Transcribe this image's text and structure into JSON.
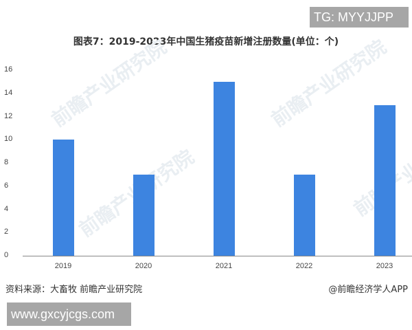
{
  "watermark_tg": "TG: MYYJJPP",
  "title": "图表7：2019-2023年中国生猪疫苗新增注册数量(单位：个)",
  "footer": {
    "source": "资料来源：大畜牧 前瞻产业研究院",
    "credit": "@前瞻经济学人APP",
    "url": "www.gxcyjcgs.com"
  },
  "watermark_text": "前瞻产业研究院",
  "colors": {
    "bar": "#3d84e0",
    "axis": "#888888"
  },
  "yticks": [
    "16",
    "14",
    "12",
    "10",
    "8",
    "6",
    "4",
    "2",
    "0"
  ],
  "chart_data": {
    "type": "bar",
    "title": "图表7：2019-2023年中国生猪疫苗新增注册数量(单位：个)",
    "categories": [
      "2019",
      "2020",
      "2021",
      "2022",
      "2023"
    ],
    "values": [
      10,
      7,
      15,
      7,
      13
    ],
    "xlabel": "",
    "ylabel": "",
    "ylim": [
      0,
      16
    ],
    "yticks": [
      0,
      2,
      4,
      6,
      8,
      10,
      12,
      14,
      16
    ],
    "grid": false,
    "legend": null
  }
}
